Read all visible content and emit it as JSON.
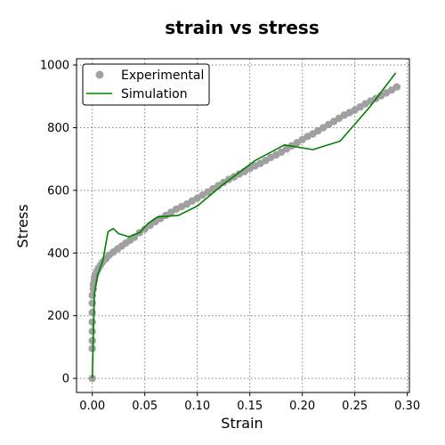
{
  "chart_data": {
    "type": "scatter",
    "title": "strain vs stress",
    "xlabel": "Strain",
    "ylabel": "Stress",
    "xlim": [
      -0.015,
      0.302
    ],
    "ylim": [
      -45,
      1020
    ],
    "xticks": [
      0.0,
      0.05,
      0.1,
      0.15,
      0.2,
      0.25,
      0.3
    ],
    "xtick_labels": [
      "0.00",
      "0.05",
      "0.10",
      "0.15",
      "0.20",
      "0.25",
      "0.30"
    ],
    "yticks": [
      0,
      200,
      400,
      600,
      800,
      1000
    ],
    "ytick_labels": [
      "0",
      "200",
      "400",
      "600",
      "800",
      "1000"
    ],
    "grid": true,
    "legend_position": "top-left",
    "series": [
      {
        "name": "Experimental",
        "kind": "scatter",
        "color": "#a0a0a0",
        "x": [
          0.0,
          0.0,
          0.0,
          0.0,
          0.0,
          0.0,
          0.0,
          0.0,
          0.001,
          0.001,
          0.002,
          0.002,
          0.003,
          0.004,
          0.005,
          0.006,
          0.008,
          0.01,
          0.013,
          0.016,
          0.02,
          0.024,
          0.028,
          0.032,
          0.036,
          0.04,
          0.045,
          0.05,
          0.055,
          0.06,
          0.065,
          0.07,
          0.075,
          0.08,
          0.085,
          0.09,
          0.095,
          0.1,
          0.105,
          0.11,
          0.115,
          0.12,
          0.125,
          0.13,
          0.135,
          0.14,
          0.145,
          0.15,
          0.155,
          0.16,
          0.165,
          0.17,
          0.175,
          0.18,
          0.185,
          0.19,
          0.195,
          0.2,
          0.205,
          0.21,
          0.215,
          0.22,
          0.225,
          0.23,
          0.235,
          0.24,
          0.245,
          0.25,
          0.255,
          0.26,
          0.265,
          0.27,
          0.275,
          0.28,
          0.285,
          0.29
        ],
        "y": [
          0,
          95,
          120,
          150,
          180,
          210,
          240,
          265,
          285,
          300,
          312,
          322,
          330,
          338,
          345,
          352,
          362,
          372,
          382,
          393,
          403,
          413,
          422,
          432,
          441,
          450,
          465,
          476,
          488,
          500,
          510,
          520,
          530,
          540,
          548,
          556,
          566,
          575,
          585,
          595,
          605,
          615,
          625,
          635,
          643,
          652,
          660,
          670,
          678,
          686,
          695,
          705,
          713,
          722,
          732,
          742,
          752,
          762,
          772,
          780,
          790,
          800,
          810,
          820,
          830,
          840,
          848,
          856,
          866,
          876,
          885,
          893,
          902,
          911,
          920,
          930
        ]
      },
      {
        "name": "Simulation",
        "kind": "line",
        "color": "#008000",
        "x": [
          0.0,
          0.002,
          0.005,
          0.01,
          0.015,
          0.02,
          0.025,
          0.035,
          0.045,
          0.053,
          0.062,
          0.082,
          0.1,
          0.125,
          0.155,
          0.183,
          0.21,
          0.236,
          0.264,
          0.289
        ],
        "y": [
          0,
          270,
          330,
          375,
          468,
          478,
          462,
          452,
          465,
          494,
          515,
          520,
          550,
          620,
          695,
          745,
          730,
          757,
          865,
          975
        ]
      }
    ]
  }
}
